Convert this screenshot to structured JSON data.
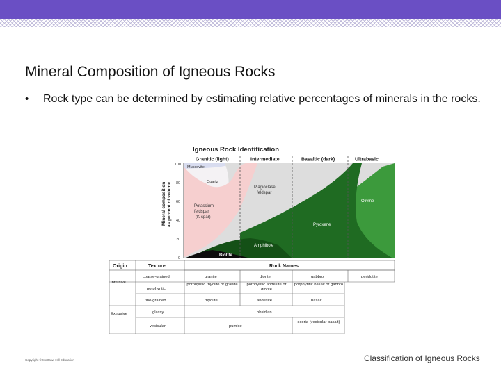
{
  "slide": {
    "title": "Mineral Composition of Igneous Rocks",
    "bullet_marker": "•",
    "bullet": "Rock type can be determined by estimating relative percentages of minerals in the rocks.",
    "footer": "Classification of Igneous Rocks",
    "copyright": "Copyright © McGraw-Hill Education"
  },
  "diagram": {
    "title": "Igneous Rock Identification",
    "columns": [
      "Granitic (light)",
      "Intermediate",
      "Basaltic (dark)",
      "Ultrabasic"
    ],
    "y_axis_label_line1": "Mineral composition",
    "y_axis_label_line2": "as percent of volume",
    "y_ticks": [
      "100",
      "80",
      "60",
      "40",
      "20",
      "0"
    ],
    "minerals": {
      "muscovite": "Muscovite",
      "quartz": "Quartz",
      "plagioclase_line1": "Plagioclase",
      "plagioclase_line2": "feldspar",
      "potassium_line1": "Potassium",
      "potassium_line2": "feldspar",
      "potassium_line3": "(K-spar)",
      "olivine": "Olivine",
      "pyroxene": "Pyroxene",
      "amphibole": "Amphibole",
      "biotite": "Biotite"
    },
    "colors": {
      "quartz": "#f4f2f4",
      "potassium": "#f6cfcf",
      "plagioclase": "#dddddd",
      "olivine": "#3c9a3c",
      "pyroxene": "#1f6b22",
      "amphibole": "#145016",
      "biotite": "#0c0c0c",
      "muscovite": "#d8dcef"
    },
    "table": {
      "headers": {
        "origin": "Origin",
        "texture": "Texture",
        "rock_names": "Rock Names"
      },
      "origins": {
        "intrusive": "Intrusive",
        "extrusive": "Extrusive"
      },
      "rows": [
        {
          "texture": "coarse-grained",
          "cells": [
            "granite",
            "diorite",
            "gabbro",
            "peridotite"
          ]
        },
        {
          "texture": "porphyritic",
          "cells": [
            "porphyritic rhyolite or granite",
            "porphyritic andesite or diorite",
            "porphyritic basalt or gabbro"
          ]
        },
        {
          "texture": "fine-grained",
          "cells": [
            "rhyolite",
            "andesite",
            "basalt"
          ]
        },
        {
          "texture": "glassy",
          "cells": [
            "obsidian"
          ]
        },
        {
          "texture": "vesicular",
          "cells": [
            "pumice",
            "scoria (vesicular basalt)"
          ]
        }
      ]
    }
  }
}
